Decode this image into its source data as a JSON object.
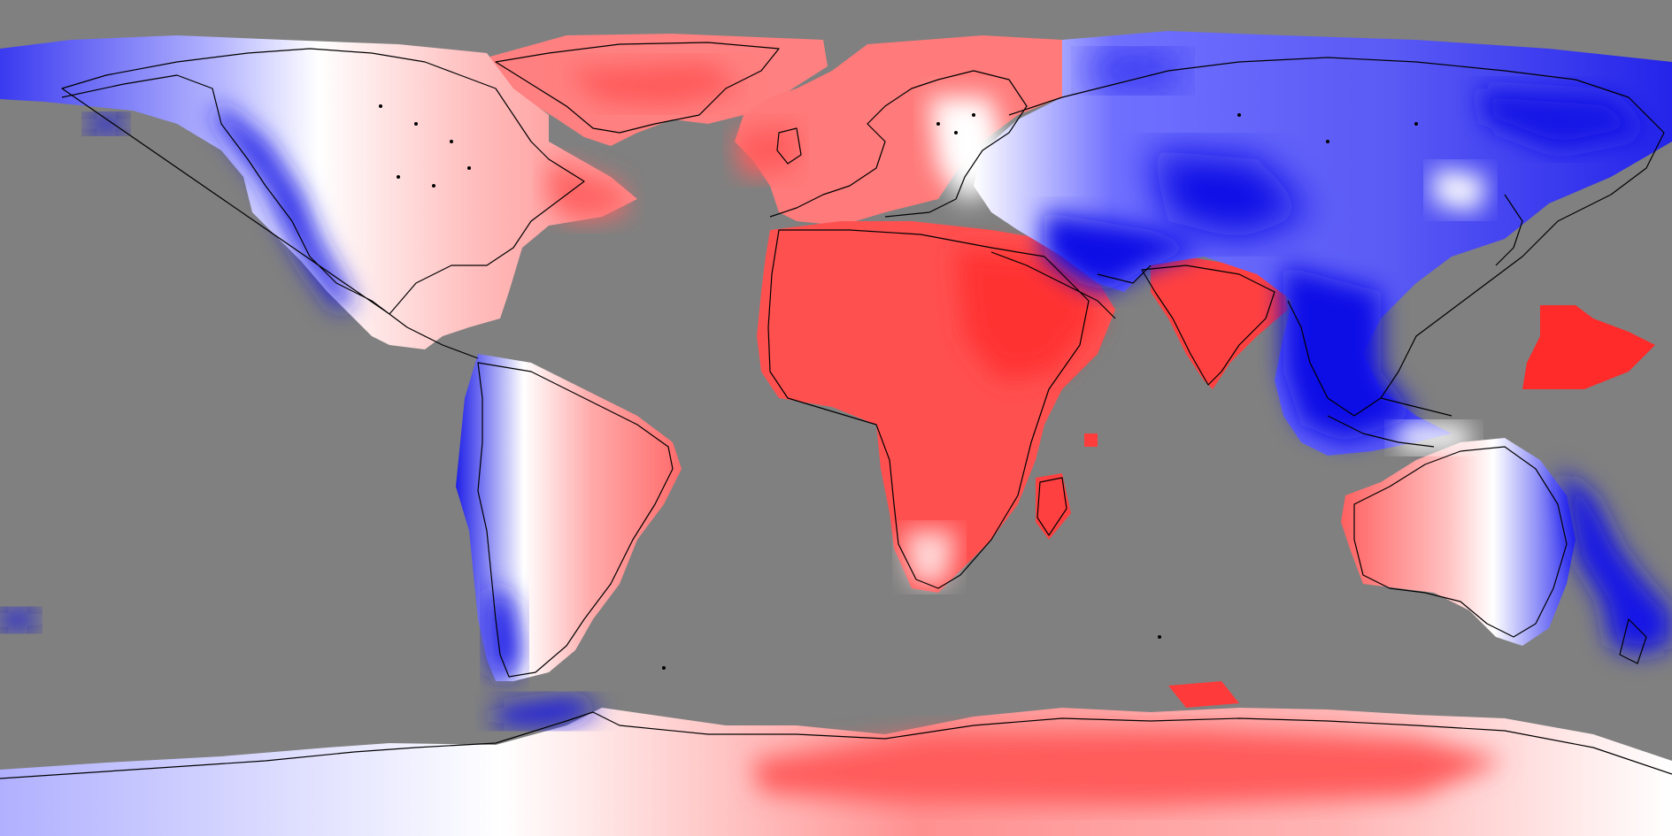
{
  "map": {
    "projection": "equirectangular",
    "extent": {
      "lon": [
        -180,
        180
      ],
      "lat": [
        -90,
        90
      ]
    },
    "colors": {
      "no_data": "#808080",
      "strong_positive": "#ff3030",
      "moderate_positive": "#ff7070",
      "weak_positive": "#ffc8c8",
      "neutral": "#ffffff",
      "weak_negative": "#c8c8ff",
      "moderate_negative": "#7070ff",
      "strong_negative": "#1010e6",
      "coastline": "#000000"
    },
    "regions": [
      {
        "name": "antarctica",
        "sign": "mixed"
      },
      {
        "name": "africa",
        "sign": "positive"
      },
      {
        "name": "arabia",
        "sign": "positive"
      },
      {
        "name": "india",
        "sign": "positive"
      },
      {
        "name": "europe",
        "sign": "positive"
      },
      {
        "name": "greenland",
        "sign": "positive"
      },
      {
        "name": "eastern-north-america",
        "sign": "positive"
      },
      {
        "name": "western-north-america",
        "sign": "negative"
      },
      {
        "name": "eastern-south-america",
        "sign": "positive"
      },
      {
        "name": "western-south-america",
        "sign": "negative"
      },
      {
        "name": "central-asia",
        "sign": "negative"
      },
      {
        "name": "siberia",
        "sign": "negative"
      },
      {
        "name": "southeast-asia",
        "sign": "negative"
      },
      {
        "name": "western-australia",
        "sign": "positive"
      },
      {
        "name": "eastern-australia",
        "sign": "negative"
      },
      {
        "name": "pacific-patch",
        "sign": "positive"
      },
      {
        "name": "madagascar",
        "sign": "positive"
      }
    ]
  }
}
